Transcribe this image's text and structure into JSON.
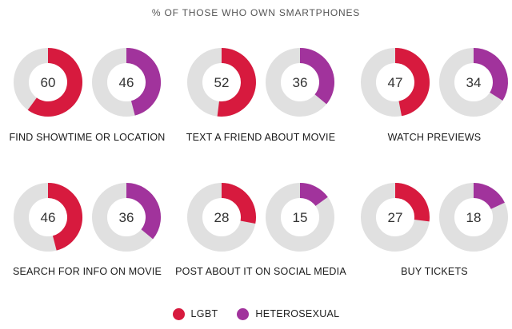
{
  "chart_data": {
    "type": "donut-grid",
    "title": "% OF THOSE WHO OWN SMARTPHONES",
    "max": 100,
    "series": [
      {
        "name": "LGBT",
        "color": "#d71a3e"
      },
      {
        "name": "HETEROSEXUAL",
        "color": "#a1339c"
      }
    ],
    "track_color": "#e0e0e0",
    "categories": [
      "FIND SHOWTIME OR LOCATION",
      "TEXT A FRIEND ABOUT MOVIE",
      "WATCH PREVIEWS",
      "SEARCH FOR INFO ON MOVIE",
      "POST ABOUT IT ON SOCIAL MEDIA",
      "BUY TICKETS"
    ],
    "values": {
      "LGBT": [
        60,
        52,
        47,
        46,
        28,
        27
      ],
      "HETEROSEXUAL": [
        46,
        36,
        34,
        36,
        15,
        18
      ]
    }
  },
  "legend": {
    "lgbt_label": "LGBT",
    "hetero_label": "HETEROSEXUAL"
  }
}
